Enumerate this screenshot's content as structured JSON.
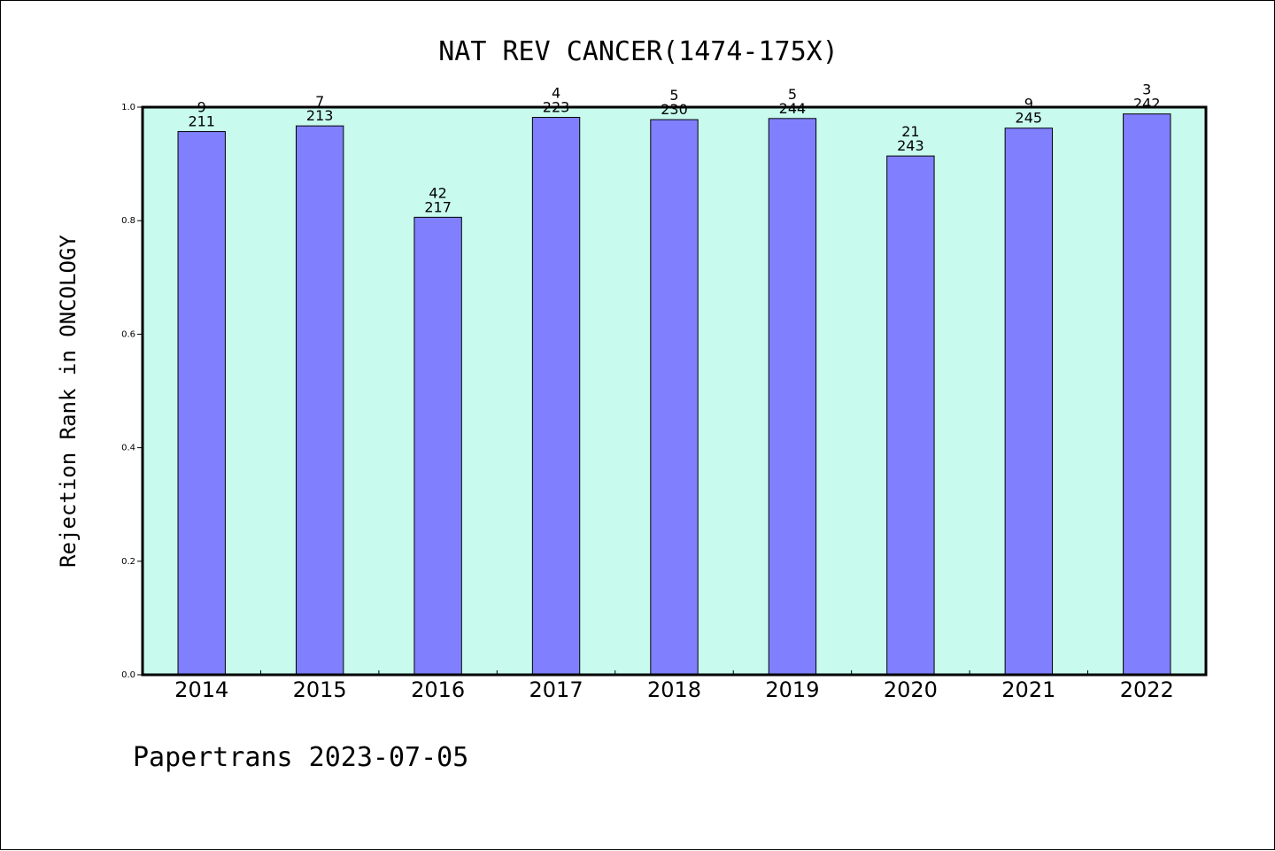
{
  "footer": "Papertrans 2023-07-05",
  "colors": {
    "plot_background": "#c8fbee",
    "bar_fill": "#8080ff",
    "bar_stroke": "#000000",
    "axis": "#000000"
  },
  "chart_data": {
    "type": "bar",
    "title": "NAT REV CANCER(1474-175X)",
    "xlabel": "",
    "ylabel": "Rejection Rank in ONCOLOGY",
    "ylim": [
      0,
      1.0
    ],
    "yticks": [
      "0.0",
      "0.2",
      "0.4",
      "0.6",
      "0.8",
      "1.0"
    ],
    "grid": false,
    "categories": [
      "2014",
      "2015",
      "2016",
      "2017",
      "2018",
      "2019",
      "2020",
      "2021",
      "2022"
    ],
    "values": [
      0.957,
      0.967,
      0.806,
      0.982,
      0.978,
      0.98,
      0.914,
      0.963,
      0.988
    ],
    "rank": [
      "9",
      "7",
      "42",
      "4",
      "5",
      "5",
      "21",
      "9",
      "3"
    ],
    "total": [
      "211",
      "213",
      "217",
      "223",
      "230",
      "244",
      "243",
      "245",
      "242"
    ]
  }
}
